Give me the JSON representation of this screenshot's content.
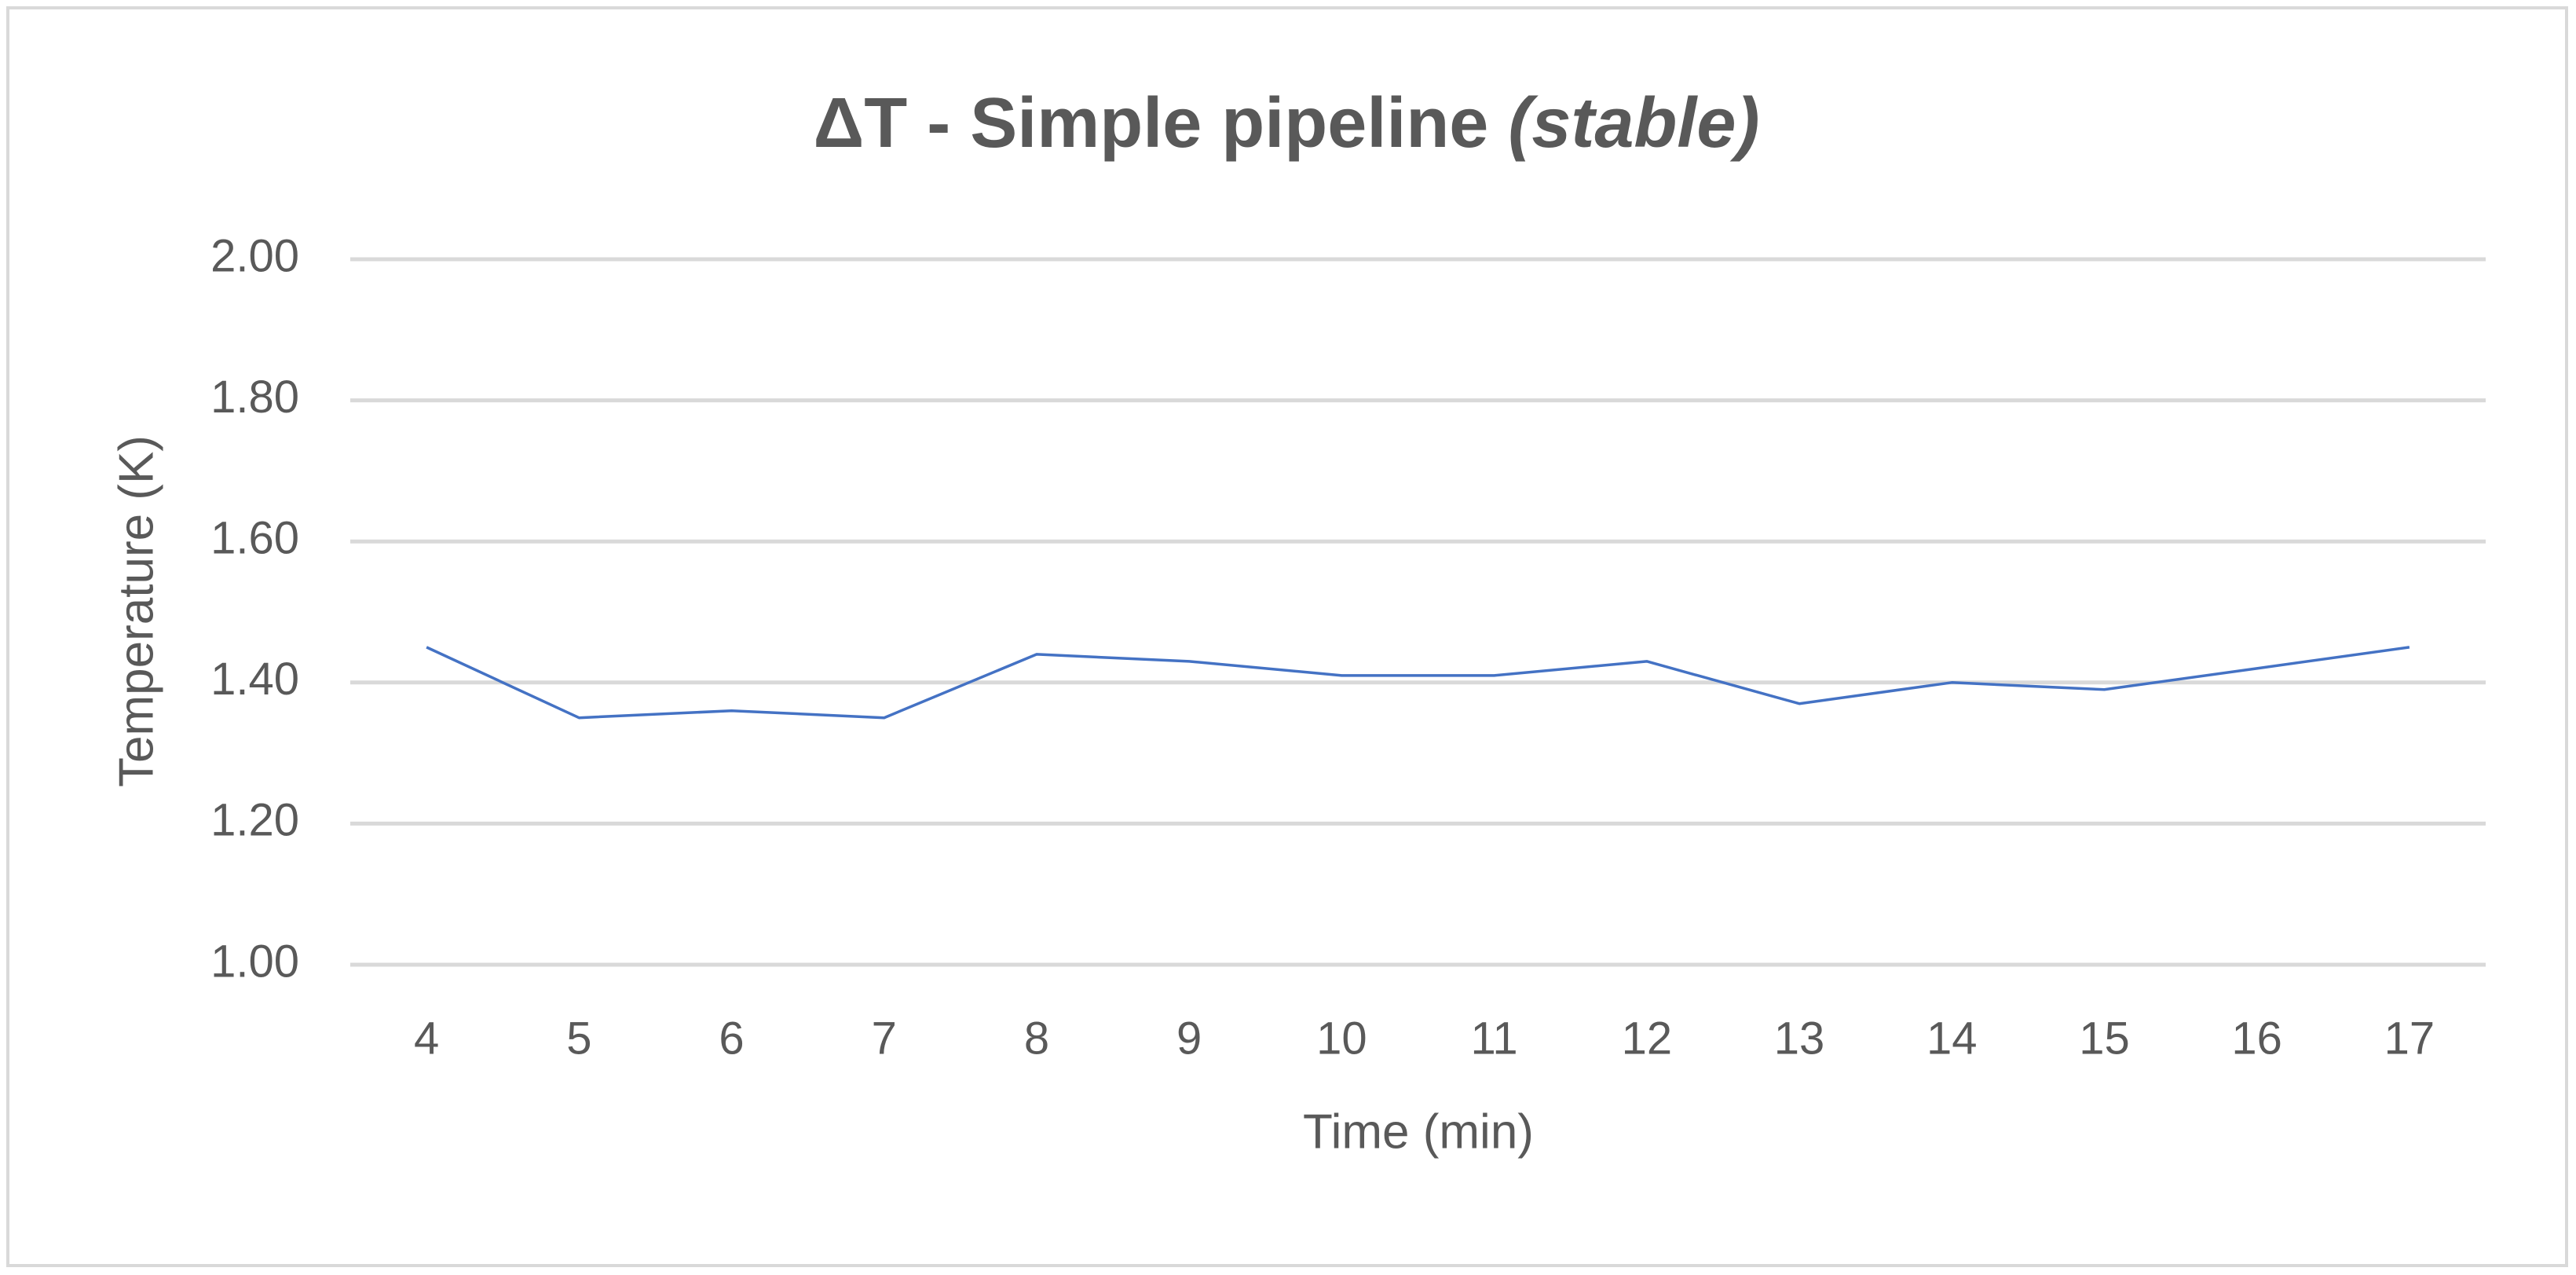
{
  "chart_data": {
    "type": "line",
    "title": "ΔT - Simple pipeline",
    "title_emphasis": "(stable)",
    "x_label": "Time (min)",
    "y_label": "Temperature (K)",
    "categories": [
      "4",
      "5",
      "6",
      "7",
      "8",
      "9",
      "10",
      "11",
      "12",
      "13",
      "14",
      "15",
      "16",
      "17"
    ],
    "series": [
      {
        "name": "ΔT",
        "color": "#4472c4",
        "values": [
          1.45,
          1.35,
          1.36,
          1.35,
          1.44,
          1.43,
          1.41,
          1.41,
          1.43,
          1.37,
          1.4,
          1.39,
          1.42,
          1.45
        ]
      }
    ],
    "ylim": [
      1.0,
      2.0
    ],
    "yticks": [
      {
        "value": 1.0,
        "label": "1.00"
      },
      {
        "value": 1.2,
        "label": "1.20"
      },
      {
        "value": 1.4,
        "label": "1.40"
      },
      {
        "value": 1.6,
        "label": "1.60"
      },
      {
        "value": 1.8,
        "label": "1.80"
      },
      {
        "value": 2.0,
        "label": "2.00"
      }
    ],
    "grid": true
  }
}
